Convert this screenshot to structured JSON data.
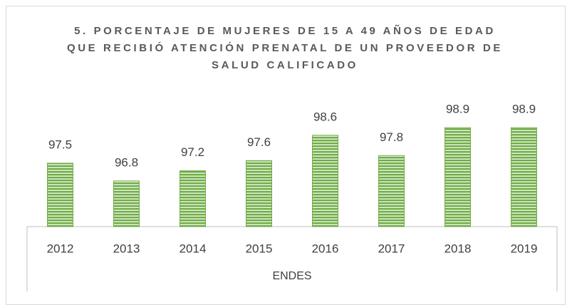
{
  "chart_data": {
    "type": "bar",
    "title": "5. PORCENTAJE DE MUJERES DE 15 A 49 AÑOS DE EDAD QUE RECIBIÓ ATENCIÓN PRENATAL DE UN PROVEEDOR DE SALUD CALIFICADO",
    "x_label": "ENDES",
    "categories": [
      "2012",
      "2013",
      "2014",
      "2015",
      "2016",
      "2017",
      "2018",
      "2019"
    ],
    "values": [
      97.5,
      96.8,
      97.2,
      97.6,
      98.6,
      97.8,
      98.9,
      98.9
    ],
    "color": "#70ad47",
    "ylim": [
      95,
      100
    ]
  }
}
